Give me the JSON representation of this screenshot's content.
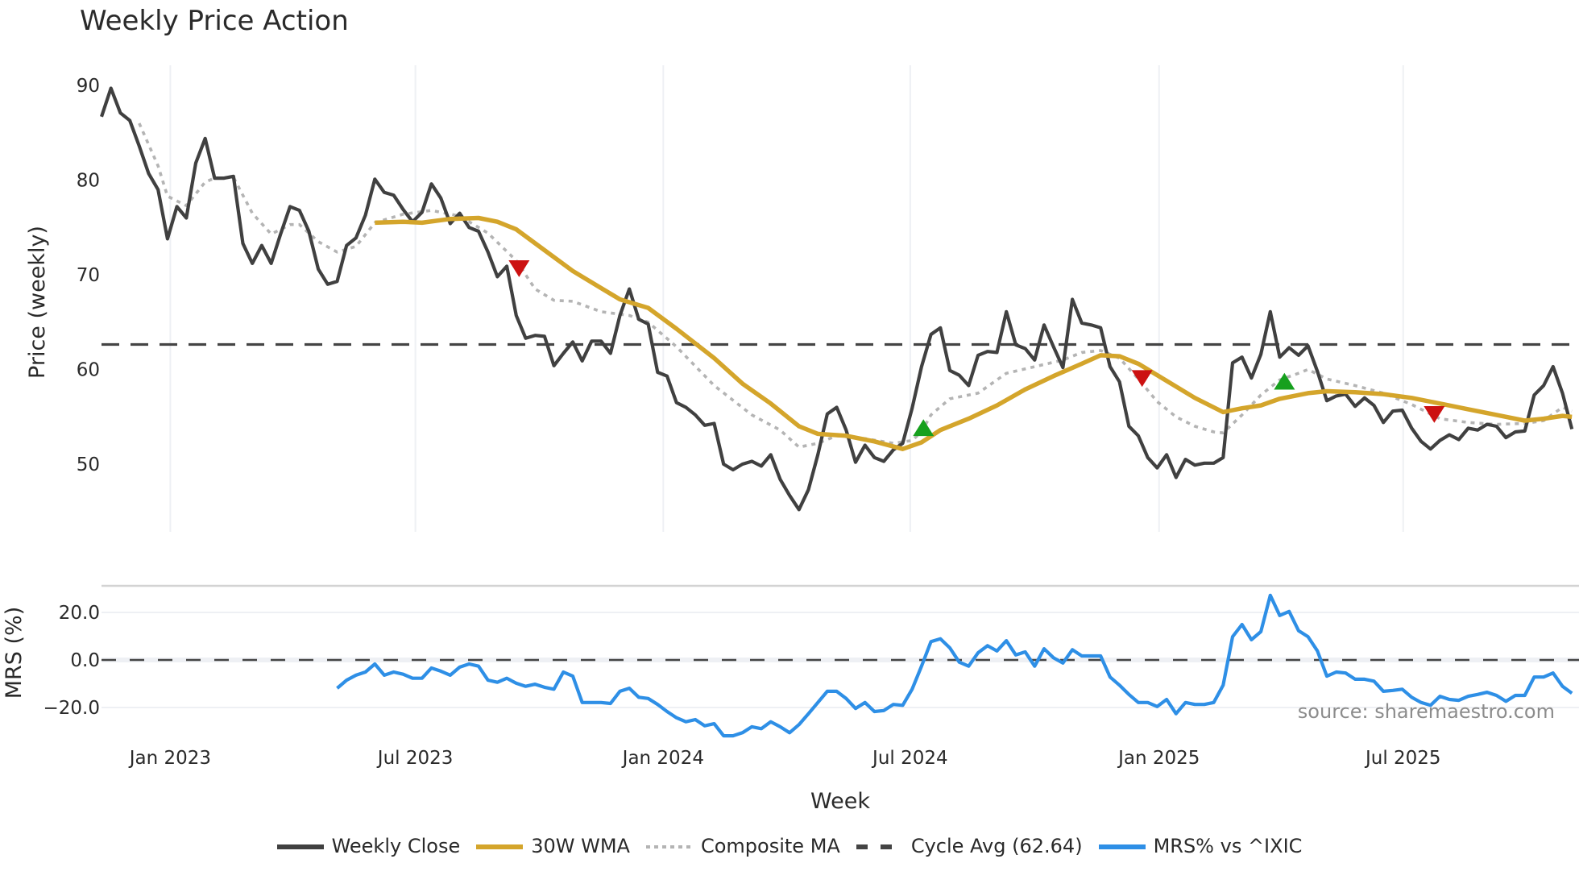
{
  "title": "Weekly Price Action",
  "source": "source: sharemaestro.com",
  "colors": {
    "close": "#404040",
    "wma": "#d4a52b",
    "composite": "#b4b4b4",
    "cycle": "#444444",
    "mrs": "#2e8fe6",
    "sell": "#cc1111",
    "buy": "#16a01e",
    "grid": "#eef0f4",
    "panel_border": "#d3d3d3"
  },
  "legend": [
    {
      "key": "close",
      "label": "Weekly Close",
      "style": "solid"
    },
    {
      "key": "wma",
      "label": "30W WMA",
      "style": "solid"
    },
    {
      "key": "composite",
      "label": "Composite MA",
      "style": "dotted"
    },
    {
      "key": "cycle",
      "label": "Cycle Avg (62.64)",
      "style": "dashed"
    },
    {
      "key": "mrs",
      "label": "MRS% vs ^IXIC",
      "style": "solid"
    }
  ],
  "chart_data": [
    {
      "type": "line",
      "title": "Weekly Price Action",
      "xlabel": "Week",
      "ylabel": "Price (weekly)",
      "ylim": [
        43,
        92.5
      ],
      "yticks": [
        50,
        60,
        70,
        80,
        90
      ],
      "xticks": [
        {
          "label": "Jan 2023",
          "week": 7.3
        },
        {
          "label": "Jul 2023",
          "week": 33.3
        },
        {
          "label": "Jan 2024",
          "week": 59.6
        },
        {
          "label": "Jul 2024",
          "week": 85.8
        },
        {
          "label": "Jan 2025",
          "week": 112.2
        },
        {
          "label": "Jul 2025",
          "week": 138.1
        }
      ],
      "grid": {
        "x": true,
        "y": false
      },
      "legend_position": "bottom",
      "x_unit": "week index (weekly bars, ~mid-Nov 2022 to Nov 2025)",
      "series": [
        {
          "name": "Weekly Close",
          "key": "close",
          "start_week": 0,
          "values": [
            86.7,
            89.7,
            87.1,
            86.3,
            83.6,
            80.7,
            79.0,
            73.8,
            77.2,
            76.0,
            81.8,
            84.4,
            80.2,
            80.2,
            80.4,
            73.3,
            71.2,
            73.1,
            71.2,
            74.3,
            77.2,
            76.8,
            74.6,
            70.6,
            69.0,
            69.3,
            73.1,
            73.9,
            76.3,
            80.1,
            78.7,
            78.4,
            76.9,
            75.6,
            76.6,
            79.6,
            78.1,
            75.4,
            76.5,
            75.0,
            74.6,
            72.4,
            69.8,
            70.9,
            65.7,
            63.3,
            63.6,
            63.5,
            60.4,
            61.7,
            62.9,
            60.9,
            63.0,
            63.0,
            61.7,
            65.7,
            68.5,
            65.3,
            64.8,
            59.7,
            59.3,
            56.5,
            56.0,
            55.2,
            54.1,
            54.3,
            50.0,
            49.4,
            50.0,
            50.3,
            49.8,
            51.0,
            48.4,
            46.7,
            45.2,
            47.3,
            51.0,
            55.3,
            56.0,
            53.6,
            50.2,
            52.0,
            50.7,
            50.3,
            51.5,
            52.2,
            55.9,
            60.3,
            63.7,
            64.4,
            59.9,
            59.4,
            58.3,
            61.5,
            61.9,
            61.8,
            66.1,
            62.6,
            62.2,
            61.0,
            64.7,
            62.4,
            60.2,
            67.4,
            64.9,
            64.7,
            64.4,
            60.3,
            58.7,
            54.0,
            53.0,
            50.7,
            49.6,
            51.0,
            48.6,
            50.5,
            49.9,
            50.1,
            50.1,
            50.7,
            60.7,
            61.3,
            59.1,
            61.6,
            66.1,
            61.3,
            62.3,
            61.5,
            62.5,
            59.8,
            56.7,
            57.2,
            57.4,
            56.1,
            57.0,
            56.2,
            54.4,
            55.6,
            55.7,
            53.8,
            52.4,
            51.6,
            52.5,
            53.1,
            52.6,
            53.8,
            53.6,
            54.2,
            54.0,
            52.8,
            53.4,
            53.5,
            57.3,
            58.3,
            60.3,
            57.5,
            53.7
          ]
        },
        {
          "name": "30W WMA",
          "key": "wma",
          "interpolate": true,
          "points": [
            [
              29,
              75.5
            ],
            [
              32,
              75.6
            ],
            [
              34,
              75.5
            ],
            [
              37,
              75.9
            ],
            [
              40,
              76.0
            ],
            [
              42,
              75.6
            ],
            [
              44,
              74.8
            ],
            [
              47,
              72.6
            ],
            [
              50,
              70.4
            ],
            [
              53,
              68.6
            ],
            [
              55,
              67.4
            ],
            [
              58,
              66.5
            ],
            [
              61,
              64.3
            ],
            [
              65,
              61.2
            ],
            [
              68,
              58.5
            ],
            [
              71,
              56.4
            ],
            [
              74,
              54.0
            ],
            [
              76,
              53.2
            ],
            [
              79,
              53.0
            ],
            [
              82,
              52.4
            ],
            [
              85,
              51.6
            ],
            [
              87,
              52.3
            ],
            [
              89,
              53.6
            ],
            [
              92,
              54.8
            ],
            [
              95,
              56.2
            ],
            [
              98,
              57.9
            ],
            [
              101,
              59.3
            ],
            [
              104,
              60.6
            ],
            [
              106,
              61.5
            ],
            [
              108,
              61.4
            ],
            [
              110,
              60.6
            ],
            [
              113,
              58.8
            ],
            [
              116,
              57.0
            ],
            [
              119,
              55.5
            ],
            [
              121,
              55.9
            ],
            [
              123,
              56.2
            ],
            [
              125,
              56.9
            ],
            [
              128,
              57.5
            ],
            [
              130,
              57.7
            ],
            [
              133,
              57.6
            ],
            [
              136,
              57.4
            ],
            [
              139,
              57.0
            ],
            [
              142,
              56.4
            ],
            [
              145,
              55.8
            ],
            [
              148,
              55.2
            ],
            [
              151,
              54.6
            ],
            [
              153,
              54.8
            ],
            [
              155,
              55.1
            ],
            [
              156,
              55.0
            ]
          ]
        },
        {
          "name": "Composite MA",
          "key": "composite",
          "interpolate": true,
          "points": [
            [
              4,
              86.0
            ],
            [
              6,
              81.5
            ],
            [
              7,
              78.3
            ],
            [
              9,
              77.3
            ],
            [
              11,
              79.8
            ],
            [
              12,
              80.2
            ],
            [
              14,
              80.3
            ],
            [
              16,
              76.5
            ],
            [
              18,
              74.3
            ],
            [
              20,
              75.3
            ],
            [
              21,
              75.3
            ],
            [
              23,
              73.5
            ],
            [
              25,
              72.4
            ],
            [
              27,
              73.0
            ],
            [
              29,
              75.5
            ],
            [
              32,
              76.4
            ],
            [
              35,
              76.8
            ],
            [
              38,
              76.2
            ],
            [
              41,
              74.4
            ],
            [
              44,
              71.5
            ],
            [
              46,
              68.5
            ],
            [
              48,
              67.3
            ],
            [
              50,
              67.2
            ],
            [
              53,
              66.1
            ],
            [
              56,
              65.7
            ],
            [
              58,
              65.0
            ],
            [
              61,
              62.4
            ],
            [
              65,
              58.3
            ],
            [
              69,
              55.2
            ],
            [
              72,
              53.6
            ],
            [
              74,
              51.8
            ],
            [
              76,
              52.2
            ],
            [
              78,
              53.0
            ],
            [
              81,
              52.7
            ],
            [
              84,
              52.2
            ],
            [
              86,
              52.5
            ],
            [
              87,
              53.4
            ],
            [
              88,
              55.2
            ],
            [
              90,
              56.9
            ],
            [
              93,
              57.5
            ],
            [
              96,
              59.6
            ],
            [
              99,
              60.3
            ],
            [
              102,
              61.0
            ],
            [
              104,
              61.8
            ],
            [
              106,
              62.0
            ],
            [
              108,
              61.2
            ],
            [
              110,
              59.0
            ],
            [
              112,
              56.6
            ],
            [
              114,
              55.0
            ],
            [
              116,
              54.0
            ],
            [
              118,
              53.4
            ],
            [
              119,
              53.3
            ],
            [
              121,
              55.2
            ],
            [
              123,
              57.3
            ],
            [
              125,
              58.9
            ],
            [
              127,
              59.6
            ],
            [
              128,
              60.0
            ],
            [
              130,
              59.0
            ],
            [
              133,
              58.3
            ],
            [
              136,
              57.5
            ],
            [
              139,
              56.3
            ],
            [
              142,
              54.8
            ],
            [
              145,
              54.4
            ],
            [
              148,
              54.2
            ],
            [
              151,
              54.3
            ],
            [
              153,
              54.6
            ],
            [
              155,
              56.0
            ],
            [
              156,
              55.6
            ]
          ]
        },
        {
          "name": "Cycle Avg (62.64)",
          "key": "cycle",
          "constant": 62.64
        }
      ],
      "markers": [
        {
          "type": "sell",
          "shape": "triangle-down",
          "week": 44.3,
          "value": 70.7
        },
        {
          "type": "buy",
          "shape": "triangle-up",
          "week": 87.2,
          "value": 53.8
        },
        {
          "type": "sell",
          "shape": "triangle-down",
          "week": 110.4,
          "value": 59.1
        },
        {
          "type": "buy",
          "shape": "triangle-up",
          "week": 125.5,
          "value": 58.7
        },
        {
          "type": "sell",
          "shape": "triangle-down",
          "week": 141.4,
          "value": 55.3
        }
      ]
    },
    {
      "type": "line",
      "title": "",
      "xlabel": "Week",
      "ylabel": "MRS (%)",
      "ylim": [
        -37,
        32
      ],
      "yticks": [
        20.0,
        0.0,
        -20.0
      ],
      "ytick_labels": [
        "20.0",
        "0.0",
        "−20.0"
      ],
      "reference_line": {
        "value": 0.0,
        "style": "dashed"
      },
      "annotation": "source: sharemaestro.com",
      "series": [
        {
          "name": "MRS% vs ^IXIC",
          "key": "mrs",
          "start_week": 25,
          "end_week": 156,
          "values": [
            -11.9,
            -8.5,
            -6.4,
            -5.1,
            -1.7,
            -6.4,
            -5.1,
            -6.0,
            -7.7,
            -7.7,
            -3.4,
            -4.7,
            -6.4,
            -3.0,
            -1.7,
            -2.6,
            -8.5,
            -9.4,
            -7.7,
            -9.8,
            -11.1,
            -10.2,
            -11.5,
            -12.3,
            -5.1,
            -6.8,
            -17.9,
            -17.9,
            -17.9,
            -18.3,
            -13.2,
            -11.9,
            -15.7,
            -16.2,
            -18.7,
            -21.7,
            -24.3,
            -26.0,
            -25.1,
            -27.7,
            -26.8,
            -31.9,
            -31.9,
            -30.6,
            -28.1,
            -28.9,
            -26.0,
            -28.1,
            -30.6,
            -27.2,
            -22.6,
            -17.9,
            -13.2,
            -13.2,
            -16.2,
            -20.4,
            -17.9,
            -21.7,
            -21.3,
            -18.7,
            -19.1,
            -12.3,
            -2.6,
            7.7,
            8.9,
            5.1,
            -0.9,
            -2.6,
            3.0,
            6.0,
            3.8,
            8.1,
            2.1,
            3.4,
            -2.6,
            4.7,
            0.9,
            -1.3,
            4.3,
            1.7,
            1.7,
            1.7,
            -7.2,
            -10.6,
            -14.5,
            -17.9,
            -17.9,
            -19.6,
            -16.6,
            -22.6,
            -17.9,
            -18.7,
            -18.7,
            -17.9,
            -10.6,
            9.8,
            14.9,
            8.5,
            11.9,
            27.2,
            18.7,
            20.4,
            12.3,
            9.8,
            3.8,
            -6.8,
            -5.1,
            -5.5,
            -8.1,
            -8.1,
            -8.9,
            -13.2,
            -12.8,
            -12.3,
            -15.7,
            -17.9,
            -19.1,
            -15.3,
            -16.6,
            -17.0,
            -15.3,
            -14.5,
            -13.6,
            -14.9,
            -17.4,
            -14.9,
            -14.9,
            -7.2,
            -7.2,
            -5.5,
            -11.1,
            -14.0
          ]
        }
      ]
    }
  ],
  "axes": {
    "price_ylabel": "Price (weekly)",
    "mrs_ylabel": "MRS (%)",
    "xlabel": "Week"
  }
}
